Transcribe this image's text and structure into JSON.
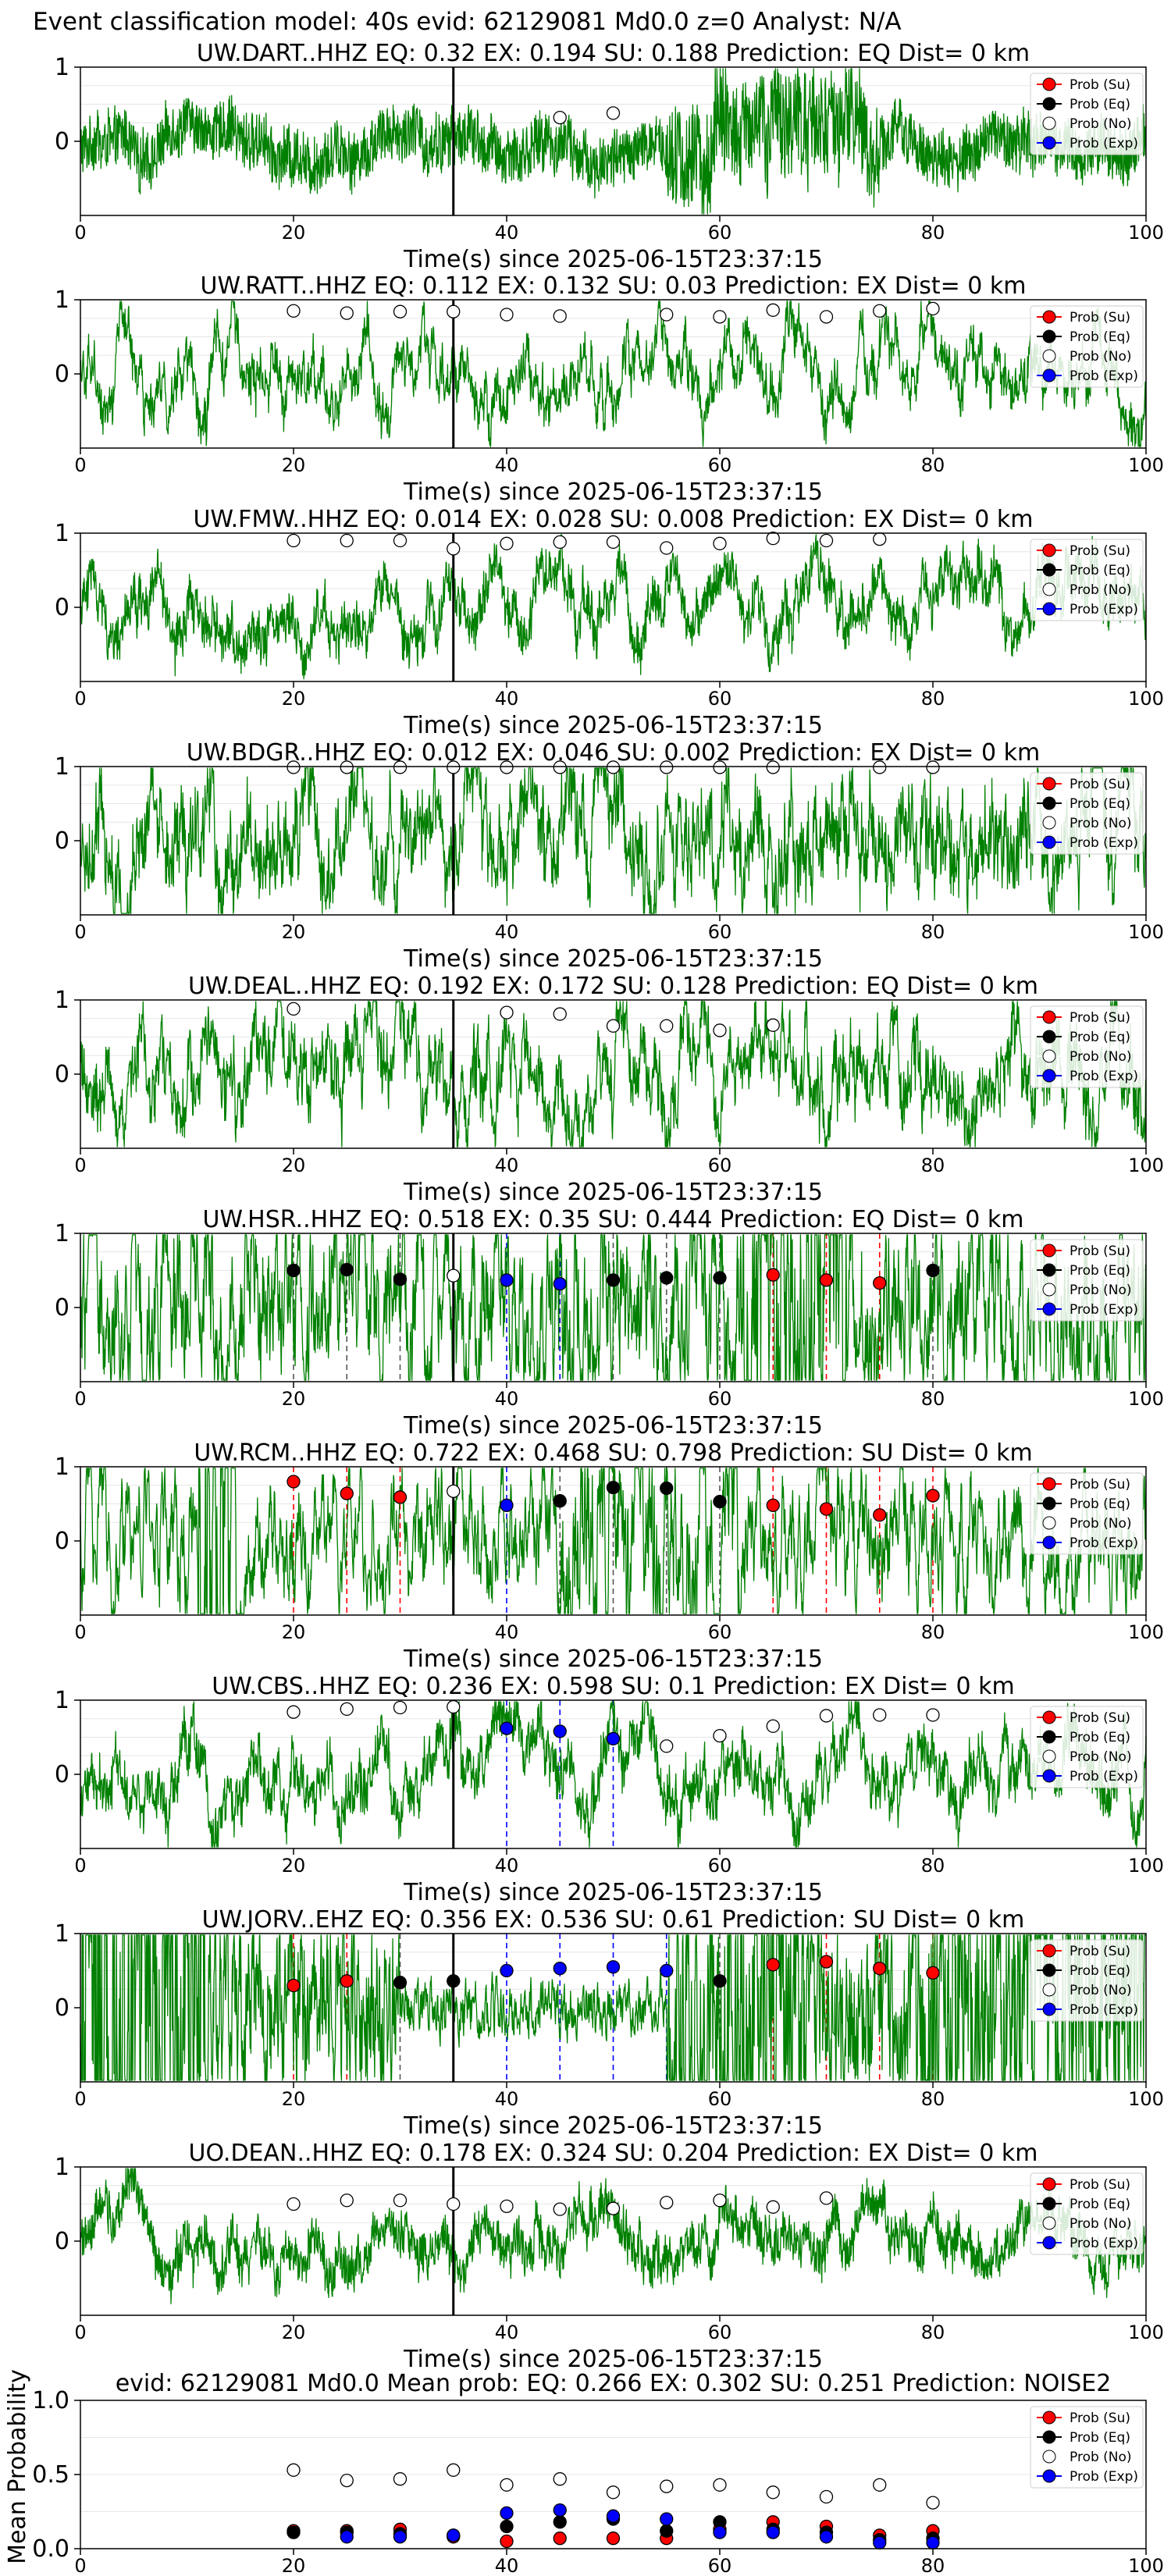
{
  "figure": {
    "suptitle": "Event classification model: 40s evid: 62129081 Md0.0 z=0 Analyst: N/A",
    "xlabel": "Time(s) since 2025-06-15T23:37:15",
    "mean_ylabel": "Mean Probability"
  },
  "legend": {
    "entries": [
      {
        "label": "Prob (Su)",
        "color": "#ff0000"
      },
      {
        "label": "Prob (Eq)",
        "color": "#000000"
      },
      {
        "label": "Prob (No)",
        "color": "#ffffff"
      },
      {
        "label": "Prob (Exp)",
        "color": "#0000ff"
      }
    ]
  },
  "colors": {
    "waveform": "#008000",
    "onset_line": "#000000",
    "su": "#ff0000",
    "eq": "#000000",
    "no": "#ffffff",
    "exp": "#0000ff"
  },
  "chart_data": [
    {
      "type": "line",
      "title": "UW.DART..HHZ   EQ: 0.32  EX: 0.194  SU: 0.188   Prediction: EQ    Dist= 0 km",
      "xlabel": "Time(s) since 2025-06-15T23:37:15",
      "xlim": [
        0,
        100
      ],
      "ylim": [
        -1,
        1
      ],
      "xticks": [
        "0",
        "20",
        "40",
        "60",
        "80",
        "100"
      ],
      "yticks": [
        "1",
        "0"
      ],
      "onset": 35,
      "noise": [
        {
          "x": 45,
          "y": 0.32
        },
        {
          "x": 50,
          "y": 0.38
        }
      ],
      "su": [],
      "eq": [],
      "exp": [],
      "vlines": []
    },
    {
      "type": "line",
      "title": "UW.RATT..HHZ   EQ: 0.112  EX: 0.132  SU: 0.03   Prediction: EX    Dist= 0 km",
      "xlabel": "Time(s) since 2025-06-15T23:37:15",
      "xlim": [
        0,
        100
      ],
      "ylim": [
        -1,
        1
      ],
      "xticks": [
        "0",
        "20",
        "40",
        "60",
        "80",
        "100"
      ],
      "yticks": [
        "1",
        "0"
      ],
      "onset": 35,
      "noise": [
        {
          "x": 20,
          "y": 0.85
        },
        {
          "x": 25,
          "y": 0.82
        },
        {
          "x": 30,
          "y": 0.84
        },
        {
          "x": 35,
          "y": 0.84
        },
        {
          "x": 40,
          "y": 0.8
        },
        {
          "x": 45,
          "y": 0.78
        },
        {
          "x": 55,
          "y": 0.8
        },
        {
          "x": 60,
          "y": 0.77
        },
        {
          "x": 65,
          "y": 0.86
        },
        {
          "x": 70,
          "y": 0.77
        },
        {
          "x": 75,
          "y": 0.85
        },
        {
          "x": 80,
          "y": 0.88
        }
      ],
      "su": [],
      "eq": [],
      "exp": [],
      "vlines": []
    },
    {
      "type": "line",
      "title": "UW.FMW..HHZ   EQ: 0.014  EX: 0.028  SU: 0.008   Prediction: EX    Dist= 0 km",
      "xlabel": "Time(s) since 2025-06-15T23:37:15",
      "xlim": [
        0,
        100
      ],
      "ylim": [
        -1,
        1
      ],
      "xticks": [
        "0",
        "20",
        "40",
        "60",
        "80",
        "100"
      ],
      "yticks": [
        "1",
        "0"
      ],
      "onset": 35,
      "noise": [
        {
          "x": 20,
          "y": 0.9
        },
        {
          "x": 25,
          "y": 0.9
        },
        {
          "x": 30,
          "y": 0.9
        },
        {
          "x": 35,
          "y": 0.79
        },
        {
          "x": 40,
          "y": 0.86
        },
        {
          "x": 45,
          "y": 0.88
        },
        {
          "x": 50,
          "y": 0.88
        },
        {
          "x": 55,
          "y": 0.8
        },
        {
          "x": 60,
          "y": 0.86
        },
        {
          "x": 65,
          "y": 0.93
        },
        {
          "x": 70,
          "y": 0.9
        },
        {
          "x": 75,
          "y": 0.92
        }
      ],
      "su": [],
      "eq": [],
      "exp": [],
      "vlines": []
    },
    {
      "type": "line",
      "title": "UW.BDGR..HHZ   EQ: 0.012  EX: 0.046  SU: 0.002   Prediction: EX    Dist= 0 km",
      "xlabel": "Time(s) since 2025-06-15T23:37:15",
      "xlim": [
        0,
        100
      ],
      "ylim": [
        -1,
        1
      ],
      "xticks": [
        "0",
        "20",
        "40",
        "60",
        "80",
        "100"
      ],
      "yticks": [
        "1",
        "0"
      ],
      "onset": 35,
      "noise": [
        {
          "x": 20,
          "y": 0.99
        },
        {
          "x": 25,
          "y": 0.99
        },
        {
          "x": 30,
          "y": 0.99
        },
        {
          "x": 35,
          "y": 0.99
        },
        {
          "x": 40,
          "y": 0.99
        },
        {
          "x": 45,
          "y": 0.99
        },
        {
          "x": 50,
          "y": 0.99
        },
        {
          "x": 55,
          "y": 0.99
        },
        {
          "x": 60,
          "y": 0.99
        },
        {
          "x": 65,
          "y": 0.99
        },
        {
          "x": 75,
          "y": 0.99
        },
        {
          "x": 80,
          "y": 0.99
        }
      ],
      "su": [],
      "eq": [],
      "exp": [],
      "vlines": []
    },
    {
      "type": "line",
      "title": "UW.DEAL..HHZ   EQ: 0.192  EX: 0.172  SU: 0.128   Prediction: EQ    Dist= 0 km",
      "xlabel": "Time(s) since 2025-06-15T23:37:15",
      "xlim": [
        0,
        100
      ],
      "ylim": [
        -1,
        1
      ],
      "xticks": [
        "0",
        "20",
        "40",
        "60",
        "80",
        "100"
      ],
      "yticks": [
        "1",
        "0"
      ],
      "onset": 35,
      "noise": [
        {
          "x": 20,
          "y": 0.88
        },
        {
          "x": 40,
          "y": 0.83
        },
        {
          "x": 45,
          "y": 0.81
        },
        {
          "x": 50,
          "y": 0.65
        },
        {
          "x": 55,
          "y": 0.65
        },
        {
          "x": 60,
          "y": 0.59
        },
        {
          "x": 65,
          "y": 0.66
        }
      ],
      "su": [],
      "eq": [],
      "exp": [],
      "vlines": []
    },
    {
      "type": "line",
      "title": "UW.HSR..HHZ   EQ: 0.518  EX: 0.35  SU: 0.444   Prediction: EQ    Dist= 0 km",
      "xlabel": "Time(s) since 2025-06-15T23:37:15",
      "xlim": [
        0,
        100
      ],
      "ylim": [
        -1,
        1
      ],
      "xticks": [
        "0",
        "20",
        "40",
        "60",
        "80",
        "100"
      ],
      "yticks": [
        "1",
        "0"
      ],
      "onset": 35,
      "noise": [
        {
          "x": 35,
          "y": 0.43
        }
      ],
      "su": [
        {
          "x": 65,
          "y": 0.44
        },
        {
          "x": 70,
          "y": 0.37
        },
        {
          "x": 75,
          "y": 0.33
        }
      ],
      "eq": [
        {
          "x": 20,
          "y": 0.5
        },
        {
          "x": 25,
          "y": 0.51
        },
        {
          "x": 30,
          "y": 0.38
        },
        {
          "x": 50,
          "y": 0.37
        },
        {
          "x": 55,
          "y": 0.4
        },
        {
          "x": 60,
          "y": 0.4
        },
        {
          "x": 80,
          "y": 0.5
        }
      ],
      "exp": [
        {
          "x": 40,
          "y": 0.37
        },
        {
          "x": 45,
          "y": 0.32
        }
      ],
      "vlines": [
        {
          "x": 20,
          "c": "eq"
        },
        {
          "x": 25,
          "c": "eq"
        },
        {
          "x": 30,
          "c": "eq"
        },
        {
          "x": 40,
          "c": "exp"
        },
        {
          "x": 45,
          "c": "exp"
        },
        {
          "x": 50,
          "c": "eq"
        },
        {
          "x": 55,
          "c": "eq"
        },
        {
          "x": 60,
          "c": "eq"
        },
        {
          "x": 65,
          "c": "su"
        },
        {
          "x": 70,
          "c": "su"
        },
        {
          "x": 75,
          "c": "su"
        },
        {
          "x": 80,
          "c": "eq"
        }
      ]
    },
    {
      "type": "line",
      "title": "UW.RCM..HHZ   EQ: 0.722  EX: 0.468  SU: 0.798   Prediction: SU    Dist= 0 km",
      "xlabel": "Time(s) since 2025-06-15T23:37:15",
      "xlim": [
        0,
        100
      ],
      "ylim": [
        -1,
        1
      ],
      "xticks": [
        "0",
        "20",
        "40",
        "60",
        "80",
        "100"
      ],
      "yticks": [
        "1",
        "0"
      ],
      "onset": 35,
      "noise": [
        {
          "x": 35,
          "y": 0.67
        }
      ],
      "su": [
        {
          "x": 20,
          "y": 0.8
        },
        {
          "x": 25,
          "y": 0.64
        },
        {
          "x": 30,
          "y": 0.59
        },
        {
          "x": 65,
          "y": 0.48
        },
        {
          "x": 70,
          "y": 0.43
        },
        {
          "x": 75,
          "y": 0.35
        },
        {
          "x": 80,
          "y": 0.61
        }
      ],
      "eq": [
        {
          "x": 45,
          "y": 0.54
        },
        {
          "x": 50,
          "y": 0.72
        },
        {
          "x": 55,
          "y": 0.71
        },
        {
          "x": 60,
          "y": 0.53
        }
      ],
      "exp": [
        {
          "x": 40,
          "y": 0.48
        }
      ],
      "vlines": [
        {
          "x": 20,
          "c": "su"
        },
        {
          "x": 25,
          "c": "su"
        },
        {
          "x": 30,
          "c": "su"
        },
        {
          "x": 40,
          "c": "exp"
        },
        {
          "x": 45,
          "c": "eq"
        },
        {
          "x": 50,
          "c": "eq"
        },
        {
          "x": 55,
          "c": "eq"
        },
        {
          "x": 60,
          "c": "eq"
        },
        {
          "x": 65,
          "c": "su"
        },
        {
          "x": 70,
          "c": "su"
        },
        {
          "x": 75,
          "c": "su"
        },
        {
          "x": 80,
          "c": "su"
        }
      ]
    },
    {
      "type": "line",
      "title": "UW.CBS..HHZ   EQ: 0.236  EX: 0.598  SU: 0.1   Prediction: EX    Dist= 0 km",
      "xlabel": "Time(s) since 2025-06-15T23:37:15",
      "xlim": [
        0,
        100
      ],
      "ylim": [
        -1,
        1
      ],
      "xticks": [
        "0",
        "20",
        "40",
        "60",
        "80",
        "100"
      ],
      "yticks": [
        "1",
        "0"
      ],
      "onset": 35,
      "noise": [
        {
          "x": 20,
          "y": 0.84
        },
        {
          "x": 25,
          "y": 0.88
        },
        {
          "x": 30,
          "y": 0.9
        },
        {
          "x": 35,
          "y": 0.91
        },
        {
          "x": 55,
          "y": 0.38
        },
        {
          "x": 60,
          "y": 0.52
        },
        {
          "x": 65,
          "y": 0.65
        },
        {
          "x": 70,
          "y": 0.79
        },
        {
          "x": 75,
          "y": 0.8
        },
        {
          "x": 80,
          "y": 0.8
        }
      ],
      "su": [],
      "eq": [],
      "exp": [
        {
          "x": 40,
          "y": 0.62
        },
        {
          "x": 45,
          "y": 0.58
        },
        {
          "x": 50,
          "y": 0.48
        }
      ],
      "vlines": [
        {
          "x": 40,
          "c": "exp"
        },
        {
          "x": 45,
          "c": "exp"
        },
        {
          "x": 50,
          "c": "exp"
        }
      ]
    },
    {
      "type": "line",
      "title": "UW.JORV..EHZ   EQ: 0.356  EX: 0.536  SU: 0.61   Prediction: SU    Dist= 0 km",
      "xlabel": "Time(s) since 2025-06-15T23:37:15",
      "xlim": [
        0,
        100
      ],
      "ylim": [
        -1,
        1
      ],
      "xticks": [
        "0",
        "20",
        "40",
        "60",
        "80",
        "100"
      ],
      "yticks": [
        "1",
        "0"
      ],
      "onset": 35,
      "noise": [],
      "su": [
        {
          "x": 20,
          "y": 0.3
        },
        {
          "x": 25,
          "y": 0.36
        },
        {
          "x": 65,
          "y": 0.58
        },
        {
          "x": 70,
          "y": 0.62
        },
        {
          "x": 75,
          "y": 0.53
        },
        {
          "x": 80,
          "y": 0.47
        }
      ],
      "eq": [
        {
          "x": 30,
          "y": 0.34
        },
        {
          "x": 35,
          "y": 0.36
        },
        {
          "x": 60,
          "y": 0.36
        }
      ],
      "exp": [
        {
          "x": 40,
          "y": 0.5
        },
        {
          "x": 45,
          "y": 0.53
        },
        {
          "x": 50,
          "y": 0.55
        },
        {
          "x": 55,
          "y": 0.5
        }
      ],
      "vlines": [
        {
          "x": 20,
          "c": "su"
        },
        {
          "x": 25,
          "c": "su"
        },
        {
          "x": 30,
          "c": "eq"
        },
        {
          "x": 40,
          "c": "exp"
        },
        {
          "x": 45,
          "c": "exp"
        },
        {
          "x": 50,
          "c": "exp"
        },
        {
          "x": 55,
          "c": "exp"
        },
        {
          "x": 60,
          "c": "eq"
        },
        {
          "x": 65,
          "c": "su"
        },
        {
          "x": 70,
          "c": "su"
        },
        {
          "x": 75,
          "c": "su"
        },
        {
          "x": 80,
          "c": "su"
        }
      ]
    },
    {
      "type": "line",
      "title": "UO.DEAN..HHZ   EQ: 0.178  EX: 0.324  SU: 0.204   Prediction: EX    Dist= 0 km",
      "xlabel": "Time(s) since 2025-06-15T23:37:15",
      "xlim": [
        0,
        100
      ],
      "ylim": [
        -1,
        1
      ],
      "xticks": [
        "0",
        "20",
        "40",
        "60",
        "80",
        "100"
      ],
      "yticks": [
        "1",
        "0"
      ],
      "onset": 35,
      "noise": [
        {
          "x": 20,
          "y": 0.5
        },
        {
          "x": 25,
          "y": 0.55
        },
        {
          "x": 30,
          "y": 0.55
        },
        {
          "x": 35,
          "y": 0.5
        },
        {
          "x": 40,
          "y": 0.47
        },
        {
          "x": 45,
          "y": 0.43
        },
        {
          "x": 50,
          "y": 0.44
        },
        {
          "x": 55,
          "y": 0.52
        },
        {
          "x": 60,
          "y": 0.55
        },
        {
          "x": 65,
          "y": 0.46
        },
        {
          "x": 70,
          "y": 0.58
        }
      ],
      "su": [],
      "eq": [],
      "exp": [],
      "vlines": []
    },
    {
      "type": "scatter",
      "title": "evid: 62129081  Md0.0   Mean prob:   EQ: 0.266  EX: 0.302  SU: 0.251   Prediction: NOISE2",
      "ylabel": "Mean Probability",
      "xlim": [
        0,
        100
      ],
      "ylim": [
        0,
        1
      ],
      "xticks": [
        "0",
        "20",
        "40",
        "60",
        "80",
        "100"
      ],
      "yticks": [
        "0.0",
        "0.5",
        "1.0"
      ],
      "noise": [
        {
          "x": 20,
          "y": 0.53
        },
        {
          "x": 25,
          "y": 0.46
        },
        {
          "x": 30,
          "y": 0.47
        },
        {
          "x": 35,
          "y": 0.53
        },
        {
          "x": 40,
          "y": 0.43
        },
        {
          "x": 45,
          "y": 0.47
        },
        {
          "x": 50,
          "y": 0.38
        },
        {
          "x": 55,
          "y": 0.42
        },
        {
          "x": 60,
          "y": 0.43
        },
        {
          "x": 65,
          "y": 0.38
        },
        {
          "x": 70,
          "y": 0.35
        },
        {
          "x": 75,
          "y": 0.43
        },
        {
          "x": 80,
          "y": 0.31
        }
      ],
      "su": [
        {
          "x": 20,
          "y": 0.12
        },
        {
          "x": 25,
          "y": 0.12
        },
        {
          "x": 30,
          "y": 0.13
        },
        {
          "x": 35,
          "y": 0.08
        },
        {
          "x": 40,
          "y": 0.05
        },
        {
          "x": 45,
          "y": 0.07
        },
        {
          "x": 50,
          "y": 0.07
        },
        {
          "x": 55,
          "y": 0.07
        },
        {
          "x": 60,
          "y": 0.13
        },
        {
          "x": 65,
          "y": 0.18
        },
        {
          "x": 70,
          "y": 0.15
        },
        {
          "x": 75,
          "y": 0.09
        },
        {
          "x": 80,
          "y": 0.12
        }
      ],
      "eq": [
        {
          "x": 20,
          "y": 0.11
        },
        {
          "x": 25,
          "y": 0.11
        },
        {
          "x": 30,
          "y": 0.1
        },
        {
          "x": 35,
          "y": 0.09
        },
        {
          "x": 40,
          "y": 0.15
        },
        {
          "x": 45,
          "y": 0.18
        },
        {
          "x": 50,
          "y": 0.2
        },
        {
          "x": 55,
          "y": 0.12
        },
        {
          "x": 60,
          "y": 0.18
        },
        {
          "x": 65,
          "y": 0.13
        },
        {
          "x": 70,
          "y": 0.11
        },
        {
          "x": 75,
          "y": 0.06
        },
        {
          "x": 80,
          "y": 0.07
        }
      ],
      "exp": [
        {
          "x": 25,
          "y": 0.08
        },
        {
          "x": 30,
          "y": 0.08
        },
        {
          "x": 35,
          "y": 0.09
        },
        {
          "x": 40,
          "y": 0.24
        },
        {
          "x": 45,
          "y": 0.26
        },
        {
          "x": 50,
          "y": 0.22
        },
        {
          "x": 55,
          "y": 0.2
        },
        {
          "x": 60,
          "y": 0.11
        },
        {
          "x": 65,
          "y": 0.11
        },
        {
          "x": 70,
          "y": 0.08
        },
        {
          "x": 75,
          "y": 0.04
        },
        {
          "x": 80,
          "y": 0.04
        }
      ],
      "vlines": []
    }
  ]
}
